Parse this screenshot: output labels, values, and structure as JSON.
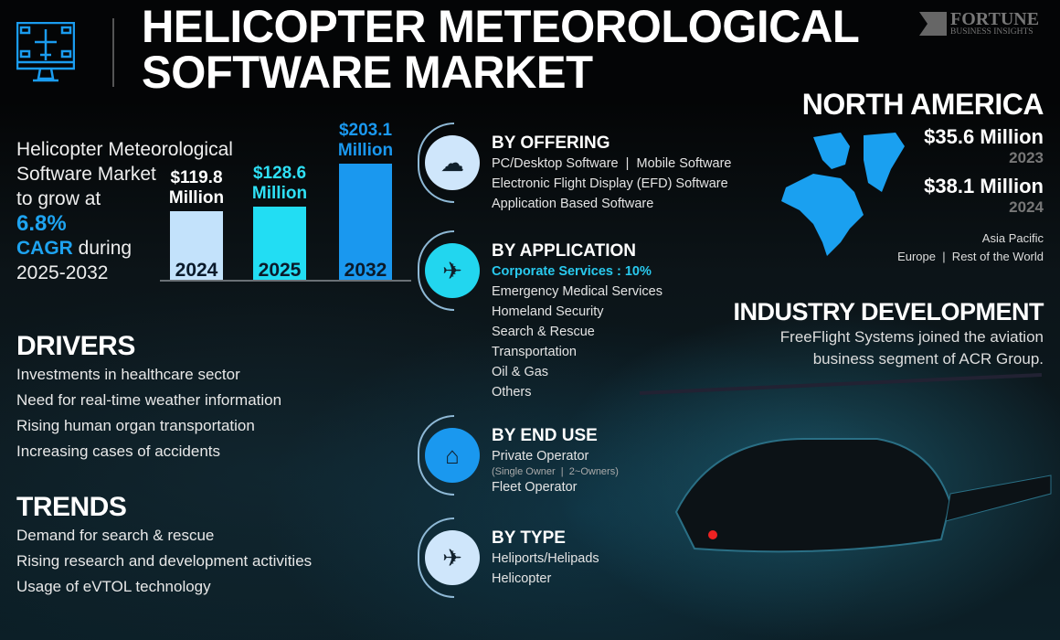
{
  "header": {
    "title_line1": "HELICOPTER METEOROLOGICAL",
    "title_line2": "SOFTWARE MARKET",
    "logo_name": "FORTUNE",
    "logo_sub": "BUSINESS INSIGHTS",
    "icon": "monitor-airplane-icon"
  },
  "intro": {
    "line1": "Helicopter Meteorological",
    "line2": "Software Market",
    "line3": "to grow at",
    "cagr": "6.8%",
    "cagr_label": "CAGR",
    "during": " during",
    "period": "2025-2032"
  },
  "chart_data": {
    "type": "bar",
    "categories": [
      "2024",
      "2025",
      "2032"
    ],
    "values": [
      119.8,
      128.6,
      203.1
    ],
    "label_value": [
      "$119.8",
      "$128.6",
      "$203.1"
    ],
    "label_unit": "Million",
    "colors": [
      "#c3e2fb",
      "#22ddf3",
      "#1a98ef"
    ],
    "label_colors": [
      "#ffffff",
      "#2ee0f5",
      "#1a98ef"
    ]
  },
  "drivers": {
    "heading": "DRIVERS",
    "items": [
      "Investments in healthcare sector",
      "Need for real-time weather information",
      "Rising human organ transportation",
      "Increasing cases of accidents"
    ]
  },
  "trends": {
    "heading": "TRENDS",
    "items": [
      "Demand for search & rescue",
      "Rising research and development activities",
      "Usage of eVTOL technology"
    ]
  },
  "segments": [
    {
      "heading": "BY OFFERING",
      "icon": "helicopter-weather-icon",
      "color": "#cfe6fb",
      "items": [
        "PC/Desktop Software  |  Mobile Software",
        "Electronic Flight Display (EFD) Software",
        "Application Based Software"
      ]
    },
    {
      "heading": "BY APPLICATION",
      "icon": "helicopter-wifi-icon",
      "color": "#22d6ef",
      "highlight": "Corporate Services : 10%",
      "items": [
        "Emergency Medical Services",
        "Homeland Security",
        "Search & Rescue",
        "Transportation",
        "Oil & Gas",
        "Others"
      ]
    },
    {
      "heading": "BY END USE",
      "icon": "helicopter-hangar-icon",
      "color": "#1a98ef",
      "items": [
        "Private Operator"
      ],
      "sub": "(Single Owner  |  2~Owners)",
      "items2": [
        "Fleet Operator"
      ]
    },
    {
      "heading": "BY TYPE",
      "icon": "helicopter-icon",
      "color": "#cfe6fb",
      "items": [
        "Heliports/Helipads",
        "Helicopter"
      ]
    }
  ],
  "region": {
    "heading": "NORTH AMERICA",
    "value1": "$35.6 Million",
    "year1": "2023",
    "value2": "$38.1 Million",
    "year2": "2024",
    "other1": "Asia Pacific",
    "other2": "Europe  |  Rest of the World",
    "map_color": "#1aa0f0"
  },
  "industry": {
    "heading": "INDUSTRY DEVELOPMENT",
    "line1": "FreeFlight Systems joined the aviation",
    "line2": "business segment of ACR Group."
  }
}
